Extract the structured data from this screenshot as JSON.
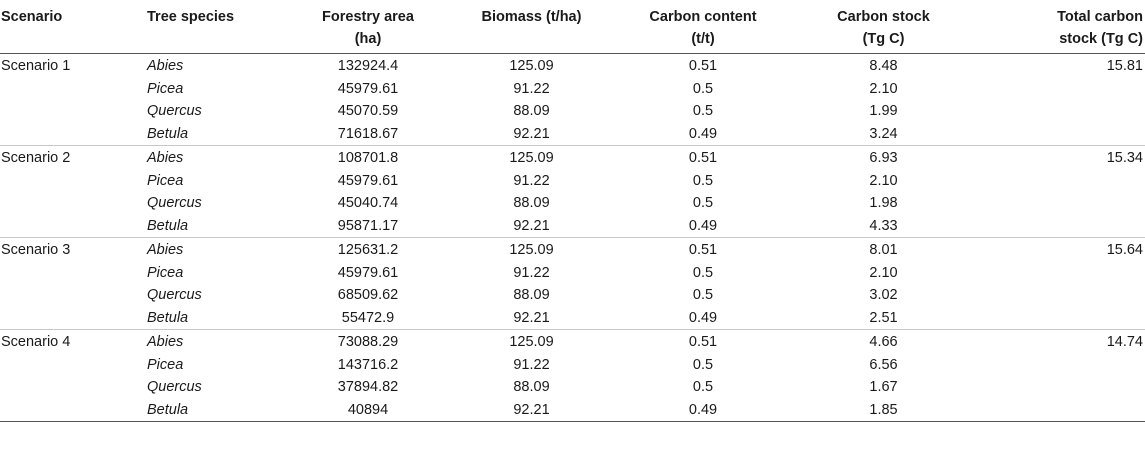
{
  "table": {
    "headers": [
      "Scenario",
      "Tree species",
      "Forestry area (ha)",
      "Biomass (t/ha)",
      "Carbon content (t/t)",
      "Carbon stock (Tg C)",
      "Total carbon stock (Tg C)"
    ],
    "header_lines": [
      [
        "Scenario"
      ],
      [
        "Tree species"
      ],
      [
        "Forestry area",
        "(ha)"
      ],
      [
        "Biomass (t/ha)"
      ],
      [
        "Carbon content",
        "(t/t)"
      ],
      [
        "Carbon stock",
        "(Tg C)"
      ],
      [
        "Total carbon",
        "stock (Tg C)"
      ]
    ],
    "groups": [
      {
        "scenario": "Scenario 1",
        "total": "15.81",
        "rows": [
          {
            "species": "Abies",
            "area": "132924.4",
            "biomass": "125.09",
            "carbon_content": "0.51",
            "carbon_stock": "8.48"
          },
          {
            "species": "Picea",
            "area": "45979.61",
            "biomass": "91.22",
            "carbon_content": "0.5",
            "carbon_stock": "2.10"
          },
          {
            "species": "Quercus",
            "area": "45070.59",
            "biomass": "88.09",
            "carbon_content": "0.5",
            "carbon_stock": "1.99"
          },
          {
            "species": "Betula",
            "area": "71618.67",
            "biomass": "92.21",
            "carbon_content": "0.49",
            "carbon_stock": "3.24"
          }
        ]
      },
      {
        "scenario": "Scenario 2",
        "total": "15.34",
        "rows": [
          {
            "species": "Abies",
            "area": "108701.8",
            "biomass": "125.09",
            "carbon_content": "0.51",
            "carbon_stock": "6.93"
          },
          {
            "species": "Picea",
            "area": "45979.61",
            "biomass": "91.22",
            "carbon_content": "0.5",
            "carbon_stock": "2.10"
          },
          {
            "species": "Quercus",
            "area": "45040.74",
            "biomass": "88.09",
            "carbon_content": "0.5",
            "carbon_stock": "1.98"
          },
          {
            "species": "Betula",
            "area": "95871.17",
            "biomass": "92.21",
            "carbon_content": "0.49",
            "carbon_stock": "4.33"
          }
        ]
      },
      {
        "scenario": "Scenario 3",
        "total": "15.64",
        "rows": [
          {
            "species": "Abies",
            "area": "125631.2",
            "biomass": "125.09",
            "carbon_content": "0.51",
            "carbon_stock": "8.01"
          },
          {
            "species": "Picea",
            "area": "45979.61",
            "biomass": "91.22",
            "carbon_content": "0.5",
            "carbon_stock": "2.10"
          },
          {
            "species": "Quercus",
            "area": "68509.62",
            "biomass": "88.09",
            "carbon_content": "0.5",
            "carbon_stock": "3.02"
          },
          {
            "species": "Betula",
            "area": "55472.9",
            "biomass": "92.21",
            "carbon_content": "0.49",
            "carbon_stock": "2.51"
          }
        ]
      },
      {
        "scenario": "Scenario 4",
        "total": "14.74",
        "rows": [
          {
            "species": "Abies",
            "area": "73088.29",
            "biomass": "125.09",
            "carbon_content": "0.51",
            "carbon_stock": "4.66"
          },
          {
            "species": "Picea",
            "area": "143716.2",
            "biomass": "91.22",
            "carbon_content": "0.5",
            "carbon_stock": "6.56"
          },
          {
            "species": "Quercus",
            "area": "37894.82",
            "biomass": "88.09",
            "carbon_content": "0.5",
            "carbon_stock": "1.67"
          },
          {
            "species": "Betula",
            "area": "40894",
            "biomass": "92.21",
            "carbon_content": "0.49",
            "carbon_stock": "1.85"
          }
        ]
      }
    ]
  }
}
